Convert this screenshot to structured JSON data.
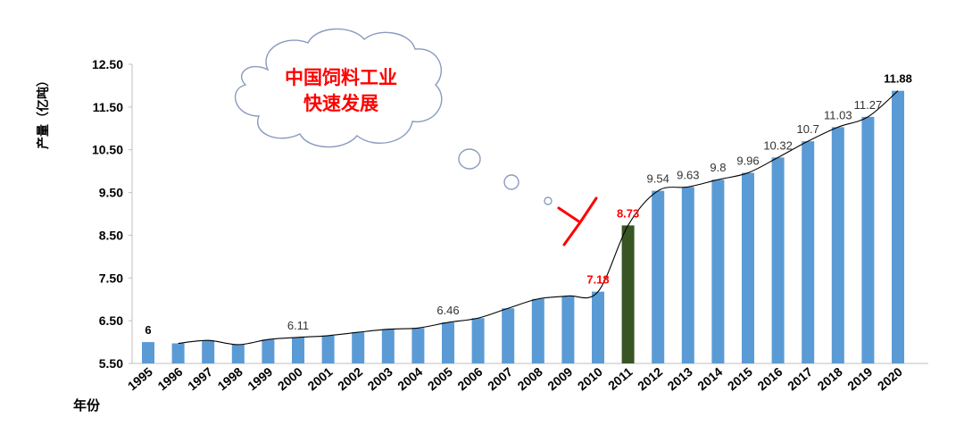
{
  "chart_data": {
    "type": "bar",
    "ylabel": "产量（亿吨）",
    "xlabel": "年份",
    "ylim": [
      5.5,
      12.5
    ],
    "yticks": [
      "12.50",
      "11.50",
      "10.50",
      "9.50",
      "8.50",
      "7.50",
      "6.50",
      "5.50"
    ],
    "categories": [
      "1995",
      "1996",
      "1997",
      "1998",
      "1999",
      "2000",
      "2001",
      "2002",
      "2003",
      "2004",
      "2005",
      "2006",
      "2007",
      "2008",
      "2009",
      "2010",
      "2011",
      "2012",
      "2013",
      "2014",
      "2015",
      "2016",
      "2017",
      "2018",
      "2019",
      "2020"
    ],
    "values": [
      6.0,
      5.97,
      6.04,
      5.94,
      6.06,
      6.11,
      6.15,
      6.23,
      6.3,
      6.33,
      6.46,
      6.56,
      6.79,
      7.01,
      7.08,
      7.18,
      8.73,
      9.54,
      9.63,
      9.8,
      9.96,
      10.32,
      10.7,
      11.03,
      11.27,
      11.88
    ],
    "highlight_index": 16,
    "data_labels": [
      {
        "index": 0,
        "text": "6",
        "style": "bold",
        "color": "#000000"
      },
      {
        "index": 5,
        "text": "6.11",
        "style": "normal",
        "color": "#333333"
      },
      {
        "index": 10,
        "text": "6.46",
        "style": "normal",
        "color": "#333333"
      },
      {
        "index": 15,
        "text": "7.18",
        "style": "bold",
        "color": "#ff0000"
      },
      {
        "index": 16,
        "text": "8.73",
        "style": "bold",
        "color": "#ff0000"
      },
      {
        "index": 17,
        "text": "9.54",
        "style": "normal",
        "color": "#333333"
      },
      {
        "index": 18,
        "text": "9.63",
        "style": "normal",
        "color": "#333333"
      },
      {
        "index": 19,
        "text": "9.8",
        "style": "normal",
        "color": "#333333"
      },
      {
        "index": 20,
        "text": "9.96",
        "style": "normal",
        "color": "#333333"
      },
      {
        "index": 21,
        "text": "10.32",
        "style": "normal",
        "color": "#333333"
      },
      {
        "index": 22,
        "text": "10.7",
        "style": "normal",
        "color": "#333333"
      },
      {
        "index": 23,
        "text": "11.03",
        "style": "normal",
        "color": "#333333"
      },
      {
        "index": 24,
        "text": "11.27",
        "style": "normal",
        "color": "#333333"
      },
      {
        "index": 25,
        "text": "11.88",
        "style": "bold",
        "color": "#000000"
      }
    ],
    "trendline": true,
    "grid": false,
    "annotation": {
      "lines": [
        "中国饲料工业",
        "快速发展"
      ],
      "shape": "thought-cloud"
    },
    "colors": {
      "bar": "#5b9bd5",
      "highlight_bar": "#375623",
      "trendline": "#000000",
      "annotation_text": "#ff0000",
      "cloud_stroke": "#8a9bbf",
      "marker": "#ff0000"
    }
  }
}
